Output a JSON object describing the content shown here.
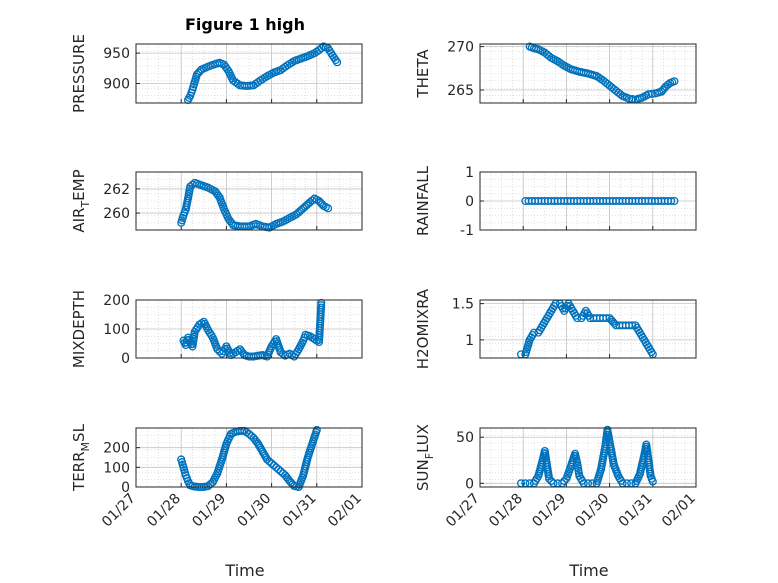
{
  "figure_title": "Figure 1 high",
  "chart_data": {
    "type": "scatter",
    "marker": "circle",
    "series_color": "#0072BD",
    "grid": true,
    "x_tick_labels": [
      "01/27",
      "01/28",
      "01/29",
      "01/30",
      "01/31",
      "02/01"
    ],
    "x_label": "Time",
    "x_range_days": [
      0,
      5
    ],
    "panels": [
      {
        "key": "pressure",
        "ylabel_main": "PRESSURE",
        "ylabel_sub": "",
        "ylabel_tail": "",
        "ylim": [
          868,
          965
        ],
        "yticks": [
          900,
          950
        ],
        "show_xticks": false,
        "points": [
          [
            1.15,
            873
          ],
          [
            1.2,
            880
          ],
          [
            1.25,
            890
          ],
          [
            1.3,
            903
          ],
          [
            1.35,
            915
          ],
          [
            1.45,
            923
          ],
          [
            1.6,
            928
          ],
          [
            1.75,
            932
          ],
          [
            1.85,
            934
          ],
          [
            1.95,
            931
          ],
          [
            2.05,
            920
          ],
          [
            2.15,
            905
          ],
          [
            2.3,
            897
          ],
          [
            2.45,
            896
          ],
          [
            2.6,
            897
          ],
          [
            2.75,
            905
          ],
          [
            2.9,
            912
          ],
          [
            3.05,
            918
          ],
          [
            3.2,
            922
          ],
          [
            3.35,
            930
          ],
          [
            3.5,
            937
          ],
          [
            3.65,
            941
          ],
          [
            3.8,
            945
          ],
          [
            3.95,
            950
          ],
          [
            4.05,
            955
          ],
          [
            4.15,
            961
          ],
          [
            4.25,
            958
          ],
          [
            4.35,
            946
          ],
          [
            4.45,
            935
          ]
        ]
      },
      {
        "key": "theta",
        "ylabel_main": "THETA",
        "ylabel_sub": "",
        "ylabel_tail": "",
        "ylim": [
          263.5,
          270.3
        ],
        "yticks": [
          265,
          270
        ],
        "show_xticks": false,
        "points": [
          [
            1.15,
            270
          ],
          [
            1.25,
            269.8
          ],
          [
            1.35,
            269.7
          ],
          [
            1.5,
            269.3
          ],
          [
            1.65,
            268.7
          ],
          [
            1.8,
            268.3
          ],
          [
            1.95,
            267.8
          ],
          [
            2.1,
            267.4
          ],
          [
            2.3,
            267.1
          ],
          [
            2.5,
            266.9
          ],
          [
            2.7,
            266.6
          ],
          [
            2.85,
            266.1
          ],
          [
            3.0,
            265.5
          ],
          [
            3.15,
            264.9
          ],
          [
            3.3,
            264.3
          ],
          [
            3.45,
            264
          ],
          [
            3.6,
            263.9
          ],
          [
            3.75,
            264.1
          ],
          [
            3.9,
            264.5
          ],
          [
            4.05,
            264.6
          ],
          [
            4.2,
            264.8
          ],
          [
            4.3,
            265.4
          ],
          [
            4.4,
            265.8
          ],
          [
            4.5,
            266
          ]
        ]
      },
      {
        "key": "air_temp",
        "ylabel_main": "AIR",
        "ylabel_sub": "T",
        "ylabel_tail": "EMP",
        "ylim": [
          258.6,
          263.4
        ],
        "yticks": [
          260,
          262
        ],
        "show_xticks": false,
        "points": [
          [
            1.0,
            259.2
          ],
          [
            1.05,
            259.8
          ],
          [
            1.1,
            260.3
          ],
          [
            1.15,
            261.2
          ],
          [
            1.2,
            262.2
          ],
          [
            1.3,
            262.5
          ],
          [
            1.45,
            262.3
          ],
          [
            1.6,
            262.1
          ],
          [
            1.75,
            261.8
          ],
          [
            1.85,
            261.3
          ],
          [
            1.95,
            260.3
          ],
          [
            2.05,
            259.5
          ],
          [
            2.15,
            259.0
          ],
          [
            2.3,
            258.9
          ],
          [
            2.5,
            258.9
          ],
          [
            2.65,
            259.1
          ],
          [
            2.8,
            258.9
          ],
          [
            2.95,
            258.8
          ],
          [
            3.1,
            259.1
          ],
          [
            3.25,
            259.3
          ],
          [
            3.4,
            259.6
          ],
          [
            3.55,
            259.9
          ],
          [
            3.7,
            260.4
          ],
          [
            3.85,
            260.9
          ],
          [
            3.95,
            261.2
          ],
          [
            4.05,
            261.0
          ],
          [
            4.15,
            260.6
          ],
          [
            4.25,
            260.4
          ]
        ]
      },
      {
        "key": "rainfall",
        "ylabel_main": "RAINFALL",
        "ylabel_sub": "",
        "ylabel_tail": "",
        "ylim": [
          -1,
          1
        ],
        "yticks": [
          -1,
          0,
          1
        ],
        "show_xticks": false,
        "points": [
          [
            1.05,
            0
          ],
          [
            1.2,
            0
          ],
          [
            1.35,
            0
          ],
          [
            1.5,
            0
          ],
          [
            1.65,
            0
          ],
          [
            1.8,
            0
          ],
          [
            1.95,
            0
          ],
          [
            2.1,
            0
          ],
          [
            2.25,
            0
          ],
          [
            2.4,
            0
          ],
          [
            2.55,
            0
          ],
          [
            2.7,
            0
          ],
          [
            2.85,
            0
          ],
          [
            3.0,
            0
          ],
          [
            3.15,
            0
          ],
          [
            3.3,
            0
          ],
          [
            3.45,
            0
          ],
          [
            3.6,
            0
          ],
          [
            3.75,
            0
          ],
          [
            3.9,
            0
          ],
          [
            4.05,
            0
          ],
          [
            4.2,
            0
          ],
          [
            4.35,
            0
          ],
          [
            4.5,
            0
          ]
        ]
      },
      {
        "key": "mixdepth",
        "ylabel_main": "MIXDEPTH",
        "ylabel_sub": "",
        "ylabel_tail": "",
        "ylim": [
          0,
          200
        ],
        "yticks": [
          0,
          100,
          200
        ],
        "show_xticks": false,
        "points": [
          [
            1.05,
            60
          ],
          [
            1.1,
            45
          ],
          [
            1.15,
            70
          ],
          [
            1.2,
            55
          ],
          [
            1.25,
            40
          ],
          [
            1.3,
            90
          ],
          [
            1.4,
            115
          ],
          [
            1.5,
            125
          ],
          [
            1.6,
            95
          ],
          [
            1.7,
            70
          ],
          [
            1.8,
            30
          ],
          [
            1.9,
            15
          ],
          [
            2.0,
            40
          ],
          [
            2.1,
            10
          ],
          [
            2.2,
            20
          ],
          [
            2.3,
            30
          ],
          [
            2.4,
            10
          ],
          [
            2.5,
            5
          ],
          [
            2.6,
            5
          ],
          [
            2.7,
            8
          ],
          [
            2.8,
            10
          ],
          [
            2.9,
            5
          ],
          [
            3.0,
            40
          ],
          [
            3.1,
            65
          ],
          [
            3.2,
            20
          ],
          [
            3.3,
            8
          ],
          [
            3.4,
            15
          ],
          [
            3.5,
            5
          ],
          [
            3.6,
            30
          ],
          [
            3.7,
            60
          ],
          [
            3.75,
            80
          ],
          [
            3.85,
            75
          ],
          [
            3.95,
            65
          ],
          [
            4.05,
            55
          ],
          [
            4.1,
            190
          ]
        ]
      },
      {
        "key": "h2omixra",
        "ylabel_main": "H2OMIXRA",
        "ylabel_sub": "",
        "ylabel_tail": "",
        "ylim": [
          0.75,
          1.55
        ],
        "yticks": [
          1,
          1.5
        ],
        "show_xticks": false,
        "points": [
          [
            0.95,
            0.8
          ],
          [
            1.05,
            0.8
          ],
          [
            1.15,
            1.0
          ],
          [
            1.25,
            1.1
          ],
          [
            1.35,
            1.1
          ],
          [
            1.45,
            1.2
          ],
          [
            1.55,
            1.3
          ],
          [
            1.65,
            1.4
          ],
          [
            1.75,
            1.5
          ],
          [
            1.85,
            1.5
          ],
          [
            1.95,
            1.4
          ],
          [
            2.05,
            1.5
          ],
          [
            2.15,
            1.4
          ],
          [
            2.25,
            1.3
          ],
          [
            2.35,
            1.3
          ],
          [
            2.45,
            1.4
          ],
          [
            2.55,
            1.3
          ],
          [
            2.7,
            1.3
          ],
          [
            2.85,
            1.3
          ],
          [
            3.0,
            1.3
          ],
          [
            3.15,
            1.2
          ],
          [
            3.3,
            1.2
          ],
          [
            3.45,
            1.2
          ],
          [
            3.6,
            1.2
          ],
          [
            3.7,
            1.1
          ],
          [
            3.8,
            1.0
          ],
          [
            3.9,
            0.9
          ],
          [
            4.0,
            0.8
          ]
        ]
      },
      {
        "key": "terr_msl",
        "ylabel_main": "TERR",
        "ylabel_sub": "M",
        "ylabel_tail": "SL",
        "ylim": [
          0,
          300
        ],
        "yticks": [
          0,
          100,
          200
        ],
        "show_xticks": true,
        "points": [
          [
            1.0,
            140
          ],
          [
            1.05,
            100
          ],
          [
            1.1,
            60
          ],
          [
            1.15,
            30
          ],
          [
            1.2,
            8
          ],
          [
            1.3,
            2
          ],
          [
            1.4,
            0
          ],
          [
            1.5,
            0
          ],
          [
            1.6,
            5
          ],
          [
            1.7,
            25
          ],
          [
            1.8,
            70
          ],
          [
            1.9,
            140
          ],
          [
            2.0,
            220
          ],
          [
            2.1,
            270
          ],
          [
            2.2,
            280
          ],
          [
            2.3,
            285
          ],
          [
            2.4,
            285
          ],
          [
            2.5,
            270
          ],
          [
            2.6,
            250
          ],
          [
            2.7,
            220
          ],
          [
            2.8,
            180
          ],
          [
            2.9,
            140
          ],
          [
            3.0,
            120
          ],
          [
            3.1,
            100
          ],
          [
            3.2,
            80
          ],
          [
            3.3,
            60
          ],
          [
            3.4,
            30
          ],
          [
            3.5,
            5
          ],
          [
            3.6,
            0
          ],
          [
            3.7,
            60
          ],
          [
            3.8,
            150
          ],
          [
            3.9,
            220
          ],
          [
            4.0,
            290
          ]
        ]
      },
      {
        "key": "sun_flux",
        "ylabel_main": "SUN",
        "ylabel_sub": "F",
        "ylabel_tail": "LUX",
        "ylim": [
          -4,
          60
        ],
        "yticks": [
          0,
          50
        ],
        "show_xticks": true,
        "points": [
          [
            0.95,
            0
          ],
          [
            1.05,
            0
          ],
          [
            1.15,
            0
          ],
          [
            1.25,
            0
          ],
          [
            1.35,
            8
          ],
          [
            1.45,
            25
          ],
          [
            1.5,
            35
          ],
          [
            1.55,
            20
          ],
          [
            1.6,
            5
          ],
          [
            1.7,
            0
          ],
          [
            1.8,
            0
          ],
          [
            1.9,
            0
          ],
          [
            2.0,
            5
          ],
          [
            2.1,
            18
          ],
          [
            2.2,
            32
          ],
          [
            2.25,
            22
          ],
          [
            2.3,
            8
          ],
          [
            2.4,
            0
          ],
          [
            2.5,
            0
          ],
          [
            2.6,
            0
          ],
          [
            2.7,
            0
          ],
          [
            2.8,
            15
          ],
          [
            2.9,
            40
          ],
          [
            2.95,
            58
          ],
          [
            3.0,
            45
          ],
          [
            3.1,
            20
          ],
          [
            3.2,
            8
          ],
          [
            3.3,
            0
          ],
          [
            3.4,
            0
          ],
          [
            3.5,
            0
          ],
          [
            3.6,
            0
          ],
          [
            3.7,
            10
          ],
          [
            3.8,
            30
          ],
          [
            3.85,
            42
          ],
          [
            3.9,
            25
          ],
          [
            3.95,
            8
          ],
          [
            4.0,
            2
          ]
        ]
      }
    ]
  }
}
